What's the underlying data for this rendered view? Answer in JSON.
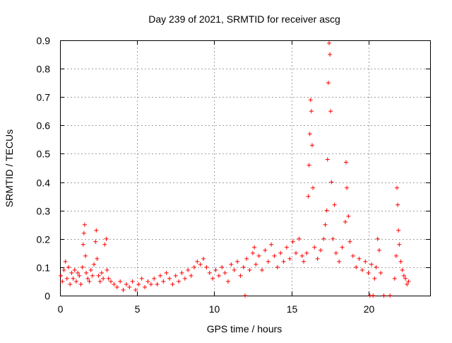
{
  "chart_data": {
    "type": "scatter",
    "title": "Day 239 of 2021, SRMTID for receiver ascg",
    "xlabel": "GPS time / hours",
    "ylabel": "SRMTID / TECUs",
    "xlim": [
      0,
      24
    ],
    "ylim": [
      0,
      0.9
    ],
    "xticks": [
      0,
      5,
      10,
      15,
      20
    ],
    "xtick_labels": [
      "0",
      "5",
      "10",
      "15",
      "20"
    ],
    "yticks": [
      0,
      0.1,
      0.2,
      0.3,
      0.4,
      0.5,
      0.6,
      0.7,
      0.8,
      0.9
    ],
    "ytick_labels": [
      "0",
      "0.1",
      "0.2",
      "0.3",
      "0.4",
      "0.5",
      "0.6",
      "0.7",
      "0.8",
      "0.9"
    ],
    "grid": true,
    "marker": "plus",
    "color": "#ff0000",
    "series": [
      {
        "name": "SRMTID",
        "points": [
          [
            0.05,
            0.07
          ],
          [
            0.15,
            0.05
          ],
          [
            0.25,
            0.09
          ],
          [
            0.35,
            0.12
          ],
          [
            0.45,
            0.06
          ],
          [
            0.55,
            0.1
          ],
          [
            0.65,
            0.04
          ],
          [
            0.75,
            0.08
          ],
          [
            0.85,
            0.06
          ],
          [
            0.95,
            0.09
          ],
          [
            1.05,
            0.05
          ],
          [
            1.15,
            0.08
          ],
          [
            1.25,
            0.07
          ],
          [
            1.35,
            0.04
          ],
          [
            1.45,
            0.1
          ],
          [
            1.5,
            0.18
          ],
          [
            1.55,
            0.22
          ],
          [
            1.6,
            0.25
          ],
          [
            1.65,
            0.14
          ],
          [
            1.7,
            0.08
          ],
          [
            1.8,
            0.06
          ],
          [
            1.9,
            0.05
          ],
          [
            2.0,
            0.09
          ],
          [
            2.1,
            0.07
          ],
          [
            2.2,
            0.11
          ],
          [
            2.3,
            0.19
          ],
          [
            2.35,
            0.23
          ],
          [
            2.4,
            0.13
          ],
          [
            2.5,
            0.07
          ],
          [
            2.6,
            0.05
          ],
          [
            2.7,
            0.08
          ],
          [
            2.8,
            0.06
          ],
          [
            2.9,
            0.18
          ],
          [
            3.0,
            0.2
          ],
          [
            3.05,
            0.09
          ],
          [
            3.15,
            0.06
          ],
          [
            3.3,
            0.05
          ],
          [
            3.5,
            0.04
          ],
          [
            3.7,
            0.03
          ],
          [
            3.9,
            0.05
          ],
          [
            4.1,
            0.02
          ],
          [
            4.3,
            0.04
          ],
          [
            4.5,
            0.03
          ],
          [
            4.7,
            0.05
          ],
          [
            4.9,
            0.02
          ],
          [
            5.1,
            0.04
          ],
          [
            5.3,
            0.06
          ],
          [
            5.5,
            0.03
          ],
          [
            5.7,
            0.05
          ],
          [
            5.9,
            0.04
          ],
          [
            6.1,
            0.06
          ],
          [
            6.3,
            0.04
          ],
          [
            6.5,
            0.07
          ],
          [
            6.7,
            0.05
          ],
          [
            6.9,
            0.08
          ],
          [
            7.1,
            0.06
          ],
          [
            7.3,
            0.04
          ],
          [
            7.5,
            0.07
          ],
          [
            7.7,
            0.05
          ],
          [
            7.9,
            0.08
          ],
          [
            8.1,
            0.06
          ],
          [
            8.3,
            0.09
          ],
          [
            8.5,
            0.07
          ],
          [
            8.7,
            0.1
          ],
          [
            8.9,
            0.12
          ],
          [
            9.1,
            0.11
          ],
          [
            9.3,
            0.13
          ],
          [
            9.5,
            0.1
          ],
          [
            9.7,
            0.08
          ],
          [
            9.9,
            0.06
          ],
          [
            10.1,
            0.09
          ],
          [
            10.3,
            0.07
          ],
          [
            10.5,
            0.1
          ],
          [
            10.7,
            0.08
          ],
          [
            10.9,
            0.05
          ],
          [
            11.1,
            0.11
          ],
          [
            11.3,
            0.09
          ],
          [
            11.5,
            0.12
          ],
          [
            11.7,
            0.07
          ],
          [
            11.9,
            0.1
          ],
          [
            12.1,
            0.13
          ],
          [
            12.3,
            0.09
          ],
          [
            12.5,
            0.15
          ],
          [
            12.6,
            0.17
          ],
          [
            12.7,
            0.11
          ],
          [
            12.9,
            0.14
          ],
          [
            13.1,
            0.09
          ],
          [
            13.3,
            0.16
          ],
          [
            13.5,
            0.12
          ],
          [
            13.7,
            0.18
          ],
          [
            13.9,
            0.14
          ],
          [
            14.1,
            0.1
          ],
          [
            14.3,
            0.15
          ],
          [
            14.5,
            0.12
          ],
          [
            14.7,
            0.17
          ],
          [
            14.9,
            0.13
          ],
          [
            15.1,
            0.19
          ],
          [
            15.3,
            0.15
          ],
          [
            15.5,
            0.2
          ],
          [
            15.7,
            0.14
          ],
          [
            15.8,
            0.12
          ],
          [
            16.0,
            0.15
          ],
          [
            16.1,
            0.35
          ],
          [
            16.15,
            0.46
          ],
          [
            16.2,
            0.57
          ],
          [
            16.25,
            0.69
          ],
          [
            16.3,
            0.65
          ],
          [
            16.35,
            0.53
          ],
          [
            16.4,
            0.38
          ],
          [
            16.5,
            0.17
          ],
          [
            16.7,
            0.13
          ],
          [
            16.9,
            0.16
          ],
          [
            17.1,
            0.2
          ],
          [
            17.2,
            0.25
          ],
          [
            17.3,
            0.3
          ],
          [
            17.35,
            0.48
          ],
          [
            17.4,
            0.75
          ],
          [
            17.45,
            0.89
          ],
          [
            17.5,
            0.85
          ],
          [
            17.55,
            0.65
          ],
          [
            17.6,
            0.4
          ],
          [
            17.7,
            0.2
          ],
          [
            17.8,
            0.32
          ],
          [
            17.9,
            0.15
          ],
          [
            18.1,
            0.12
          ],
          [
            18.3,
            0.17
          ],
          [
            18.5,
            0.26
          ],
          [
            18.55,
            0.47
          ],
          [
            18.6,
            0.38
          ],
          [
            18.7,
            0.28
          ],
          [
            18.8,
            0.19
          ],
          [
            19.0,
            0.14
          ],
          [
            19.2,
            0.1
          ],
          [
            19.4,
            0.13
          ],
          [
            19.6,
            0.09
          ],
          [
            19.8,
            0.12
          ],
          [
            20.0,
            0.08
          ],
          [
            20.2,
            0.11
          ],
          [
            20.4,
            0.06
          ],
          [
            20.5,
            0.1
          ],
          [
            20.6,
            0.2
          ],
          [
            20.7,
            0.16
          ],
          [
            20.8,
            0.08
          ],
          [
            21.0,
            0.0
          ],
          [
            21.4,
            0.0
          ],
          [
            21.7,
            0.06
          ],
          [
            21.8,
            0.14
          ],
          [
            21.85,
            0.38
          ],
          [
            21.9,
            0.32
          ],
          [
            21.95,
            0.23
          ],
          [
            22.0,
            0.18
          ],
          [
            22.1,
            0.12
          ],
          [
            22.2,
            0.09
          ],
          [
            22.3,
            0.07
          ],
          [
            22.4,
            0.06
          ],
          [
            22.5,
            0.04
          ],
          [
            22.6,
            0.05
          ],
          [
            20.1,
            0.0
          ],
          [
            20.3,
            0.0
          ],
          [
            12.0,
            0.0
          ]
        ]
      }
    ]
  }
}
